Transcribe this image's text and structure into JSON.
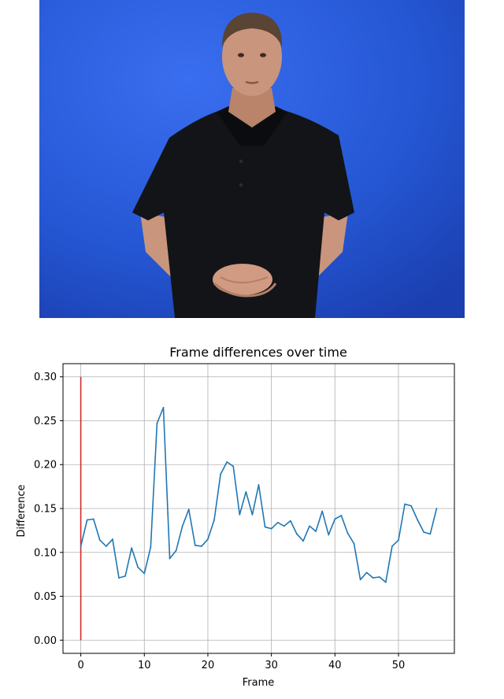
{
  "frame_image": {
    "subject": "video frame of a man in a black polo shirt standing with hands clasped in front of a blue backdrop",
    "colors": {
      "background": "#2356cf",
      "shirt": "#121418",
      "skin": "#c9957c",
      "hair": "#5a4433"
    }
  },
  "chart_data": {
    "type": "line",
    "title": "Frame differences over time",
    "xlabel": "Frame",
    "ylabel": "Difference",
    "xlim": [
      -2.8,
      58.8
    ],
    "ylim": [
      -0.015,
      0.315
    ],
    "xticks": [
      0,
      10,
      20,
      30,
      40,
      50
    ],
    "yticks": [
      0.0,
      0.05,
      0.1,
      0.15,
      0.2,
      0.25,
      0.3
    ],
    "ytick_labels": [
      "0.00",
      "0.05",
      "0.10",
      "0.15",
      "0.20",
      "0.25",
      "0.30"
    ],
    "grid": true,
    "series": [
      {
        "color": "#1f77b4",
        "x": [
          0,
          1,
          2,
          3,
          4,
          5,
          6,
          7,
          8,
          9,
          10,
          11,
          12,
          13,
          14,
          15,
          16,
          17,
          18,
          19,
          20,
          21,
          22,
          23,
          24,
          25,
          26,
          27,
          28,
          29,
          30,
          31,
          32,
          33,
          34,
          35,
          36,
          37,
          38,
          39,
          40,
          41,
          42,
          43,
          44,
          45,
          46,
          47,
          48,
          49,
          50,
          51,
          52,
          53,
          54,
          55,
          56
        ],
        "values": [
          0.107,
          0.137,
          0.138,
          0.114,
          0.107,
          0.115,
          0.071,
          0.073,
          0.105,
          0.083,
          0.076,
          0.106,
          0.247,
          0.265,
          0.093,
          0.102,
          0.13,
          0.149,
          0.108,
          0.107,
          0.115,
          0.137,
          0.189,
          0.203,
          0.198,
          0.143,
          0.169,
          0.143,
          0.177,
          0.129,
          0.127,
          0.134,
          0.13,
          0.136,
          0.121,
          0.113,
          0.13,
          0.124,
          0.147,
          0.12,
          0.138,
          0.142,
          0.122,
          0.11,
          0.069,
          0.077,
          0.071,
          0.072,
          0.066,
          0.107,
          0.114,
          0.155,
          0.153,
          0.137,
          0.123,
          0.121,
          0.15
        ]
      }
    ],
    "marker_line": {
      "color": "#d62728",
      "x": 0,
      "y_from": 0.0,
      "y_to": 0.3
    }
  }
}
